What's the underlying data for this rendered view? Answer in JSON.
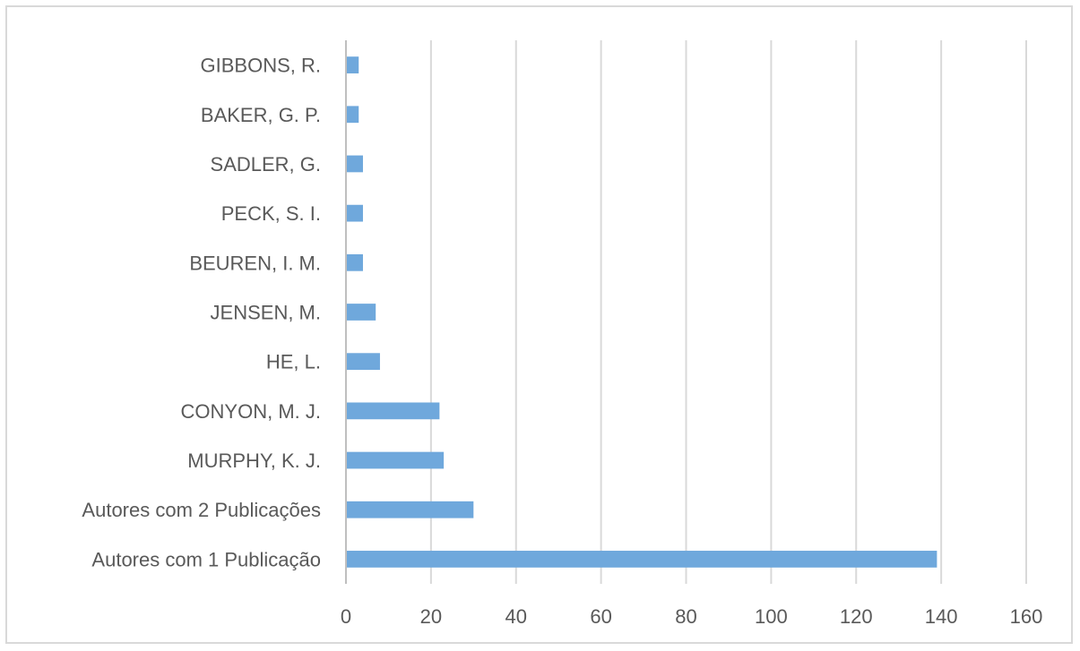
{
  "chart_data": {
    "type": "bar",
    "orientation": "horizontal",
    "categories": [
      "GIBBONS, R.",
      "BAKER, G. P.",
      "SADLER, G.",
      "PECK, S. I.",
      "BEUREN, I. M.",
      "JENSEN, M.",
      "HE, L.",
      "CONYON, M. J.",
      "MURPHY, K. J.",
      "Autores com 2 Publicações",
      "Autores com 1 Publicação"
    ],
    "values": [
      3,
      3,
      4,
      4,
      4,
      7,
      8,
      22,
      23,
      30,
      139
    ],
    "xlim": [
      0,
      160
    ],
    "xticks": [
      "0",
      "20",
      "40",
      "60",
      "80",
      "100",
      "120",
      "140",
      "160"
    ],
    "grid": "vertical",
    "legend": "none",
    "colors": {
      "bar": "#6fa8dc",
      "grid": "#d9d9d9",
      "axis": "#bfbfbf",
      "text": "#595959"
    }
  }
}
